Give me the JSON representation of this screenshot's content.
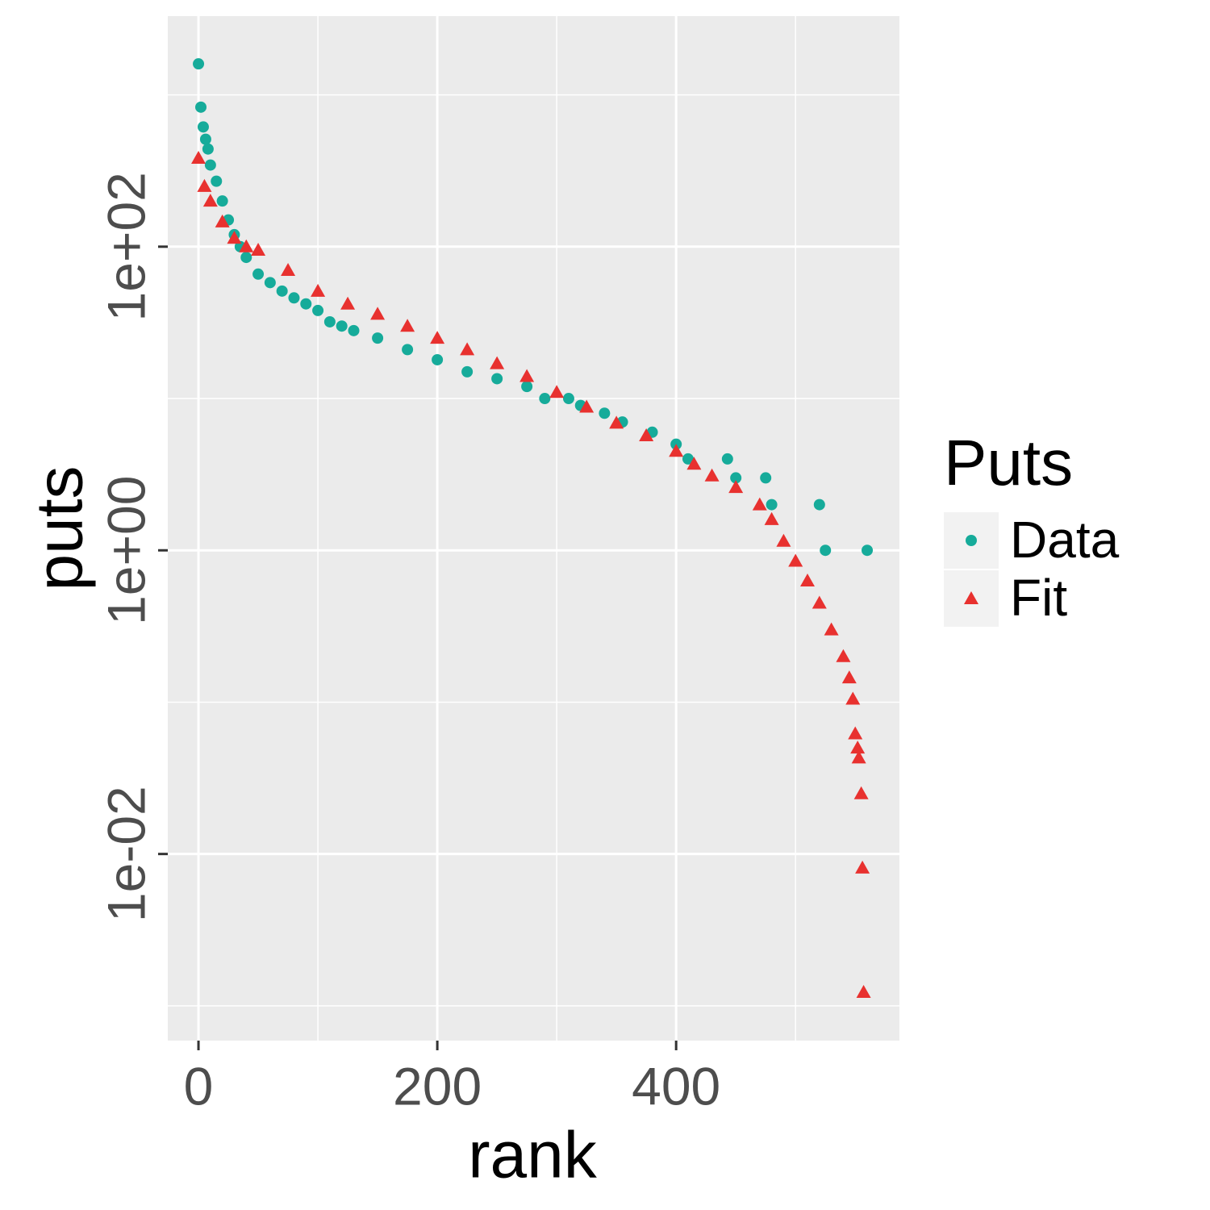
{
  "chart_data": {
    "type": "scatter",
    "x_label": "rank",
    "y_label": "puts",
    "xlim": [
      -25.7,
      587
    ],
    "xticks": [
      0,
      200,
      400
    ],
    "x_minor_grid": [
      100,
      300,
      500
    ],
    "ylim": [
      0.00059,
      3300
    ],
    "y_log": true,
    "yticks": [
      {
        "value": 100,
        "label": "1e+02"
      },
      {
        "value": 1,
        "label": "1e+00"
      },
      {
        "value": 0.01,
        "label": "1e-02"
      }
    ],
    "y_minor_grid": [
      1000,
      10,
      0.1,
      0.001
    ],
    "grid": true,
    "legend_title": "Puts",
    "legend_position": "right",
    "series": [
      {
        "name": "Data",
        "color": "#16ab9a",
        "shape": "circle",
        "x": [
          0,
          2,
          4,
          6,
          8,
          10,
          15,
          20,
          25,
          30,
          35,
          40,
          50,
          60,
          70,
          80,
          90,
          100,
          110,
          120,
          130,
          150,
          175,
          200,
          225,
          250,
          275,
          290,
          310,
          320,
          340,
          355,
          380,
          400,
          410,
          443,
          450,
          475,
          480,
          520,
          525,
          560
        ],
        "values": [
          1600,
          830,
          615,
          510,
          440,
          345,
          270,
          200,
          150,
          120,
          100,
          85,
          66,
          58,
          51,
          46,
          42,
          38,
          32,
          30,
          28,
          25,
          21,
          18,
          15,
          13.5,
          12,
          10,
          10,
          9,
          8,
          7,
          6,
          5,
          4,
          4,
          3,
          3,
          2,
          2,
          1,
          1
        ]
      },
      {
        "name": "Fit",
        "color": "#e8312f",
        "shape": "triangle",
        "x": [
          0,
          5,
          10,
          20,
          30,
          40,
          50,
          75,
          100,
          125,
          150,
          175,
          200,
          225,
          250,
          275,
          300,
          325,
          350,
          375,
          400,
          415,
          430,
          450,
          470,
          480,
          490,
          500,
          510,
          520,
          530,
          540,
          545,
          548,
          550,
          552,
          553,
          555,
          556,
          557
        ],
        "values": [
          383,
          250,
          200,
          146,
          114,
          100,
          95,
          70,
          51,
          42,
          36,
          30,
          25,
          21,
          17,
          14,
          11,
          8.8,
          6.9,
          5.7,
          4.5,
          3.7,
          3.1,
          2.6,
          2.0,
          1.6,
          1.15,
          0.85,
          0.63,
          0.45,
          0.3,
          0.2,
          0.145,
          0.105,
          0.062,
          0.05,
          0.043,
          0.025,
          0.0081,
          0.00123
        ]
      }
    ]
  }
}
